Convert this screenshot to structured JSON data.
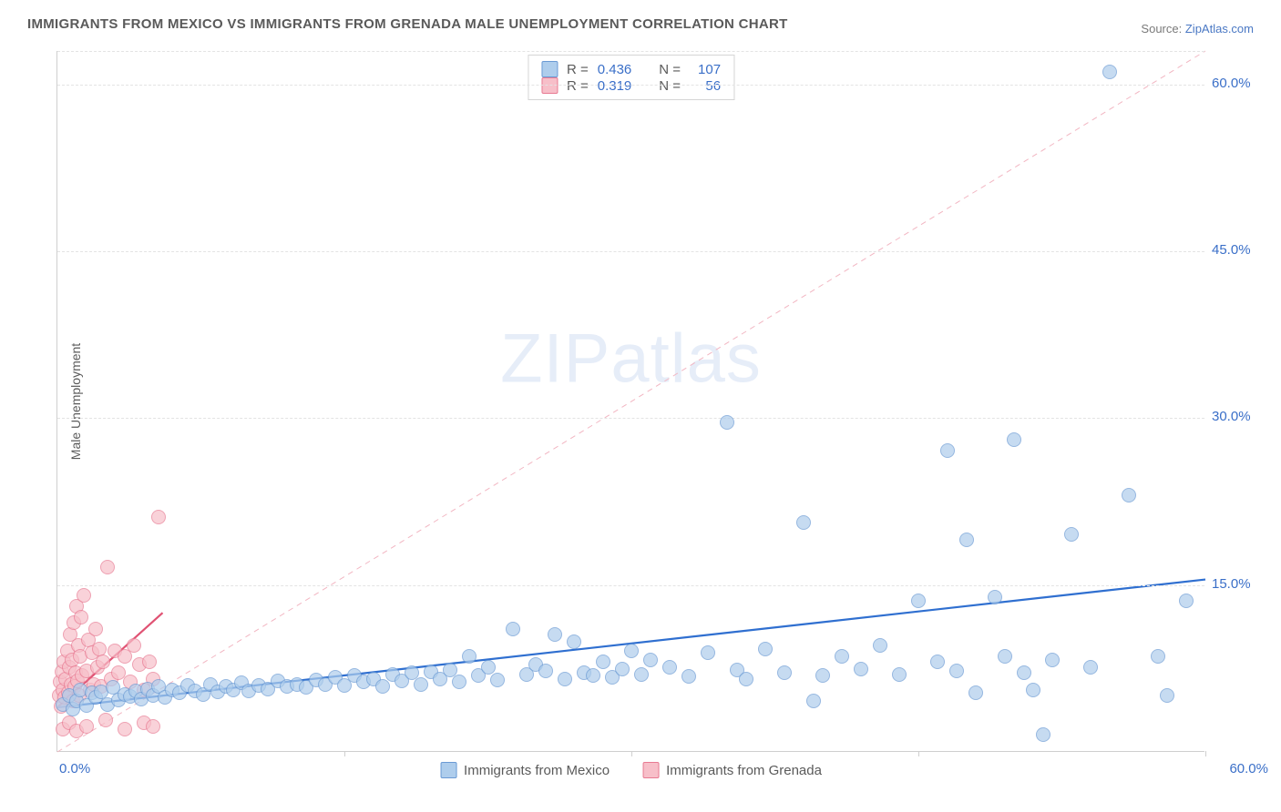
{
  "title": "IMMIGRANTS FROM MEXICO VS IMMIGRANTS FROM GRENADA MALE UNEMPLOYMENT CORRELATION CHART",
  "source_label": "Source:",
  "source_name": "ZipAtlas.com",
  "ylabel": "Male Unemployment",
  "watermark": "ZIPatlas",
  "chart": {
    "type": "scatter",
    "xlim": [
      0,
      60
    ],
    "ylim": [
      0,
      63
    ],
    "yticks": [
      15.0,
      30.0,
      45.0,
      60.0
    ],
    "xtick_left": "0.0%",
    "xtick_right": "60.0%",
    "vticks_at": [
      15,
      30,
      45,
      60
    ],
    "background_color": "#ffffff",
    "grid_color": "#e3e3e3",
    "border_color": "#cfcfcf",
    "marker_radius": 8,
    "series": {
      "mexico": {
        "label": "Immigrants from Mexico",
        "fill": "#aecdec",
        "stroke": "#6a9ad4",
        "opacity": 0.7,
        "R": "0.436",
        "N": "107",
        "trend": {
          "x1": 0,
          "y1": 4.0,
          "x2": 60,
          "y2": 15.5,
          "color": "#2f6fd0",
          "width": 2.2,
          "dash": "none"
        },
        "ref_line": {
          "x1": 0,
          "y1": 0,
          "x2": 60,
          "y2": 63,
          "color": "#f2b6c2",
          "width": 1,
          "dash": "6,5"
        },
        "points": [
          [
            0.3,
            4.2
          ],
          [
            0.6,
            5.0
          ],
          [
            0.8,
            3.8
          ],
          [
            1.0,
            4.5
          ],
          [
            1.2,
            5.5
          ],
          [
            1.5,
            4.1
          ],
          [
            1.8,
            5.2
          ],
          [
            2.0,
            4.8
          ],
          [
            2.3,
            5.3
          ],
          [
            2.6,
            4.2
          ],
          [
            2.9,
            5.7
          ],
          [
            3.2,
            4.6
          ],
          [
            3.5,
            5.1
          ],
          [
            3.8,
            4.9
          ],
          [
            4.1,
            5.4
          ],
          [
            4.4,
            4.7
          ],
          [
            4.7,
            5.6
          ],
          [
            5.0,
            5.0
          ],
          [
            5.3,
            5.8
          ],
          [
            5.6,
            4.8
          ],
          [
            6.0,
            5.5
          ],
          [
            6.4,
            5.2
          ],
          [
            6.8,
            5.9
          ],
          [
            7.2,
            5.4
          ],
          [
            7.6,
            5.1
          ],
          [
            8.0,
            6.0
          ],
          [
            8.4,
            5.3
          ],
          [
            8.8,
            5.8
          ],
          [
            9.2,
            5.5
          ],
          [
            9.6,
            6.1
          ],
          [
            10.0,
            5.4
          ],
          [
            10.5,
            5.9
          ],
          [
            11.0,
            5.6
          ],
          [
            11.5,
            6.3
          ],
          [
            12.0,
            5.8
          ],
          [
            12.5,
            6.0
          ],
          [
            13.0,
            5.7
          ],
          [
            13.5,
            6.4
          ],
          [
            14.0,
            6.0
          ],
          [
            14.5,
            6.6
          ],
          [
            15.0,
            5.9
          ],
          [
            15.5,
            6.8
          ],
          [
            16.0,
            6.2
          ],
          [
            16.5,
            6.5
          ],
          [
            17.0,
            5.8
          ],
          [
            17.5,
            6.9
          ],
          [
            18.0,
            6.3
          ],
          [
            18.5,
            7.0
          ],
          [
            19.0,
            6.0
          ],
          [
            19.5,
            7.1
          ],
          [
            20.0,
            6.5
          ],
          [
            20.5,
            7.3
          ],
          [
            21.0,
            6.2
          ],
          [
            21.5,
            8.5
          ],
          [
            22.0,
            6.8
          ],
          [
            22.5,
            7.5
          ],
          [
            23.0,
            6.4
          ],
          [
            23.8,
            11.0
          ],
          [
            24.5,
            6.9
          ],
          [
            25.0,
            7.8
          ],
          [
            25.5,
            7.2
          ],
          [
            26.0,
            10.5
          ],
          [
            26.5,
            6.5
          ],
          [
            27.0,
            9.8
          ],
          [
            27.5,
            7.0
          ],
          [
            28.0,
            6.8
          ],
          [
            28.5,
            8.0
          ],
          [
            29.0,
            6.6
          ],
          [
            29.5,
            7.4
          ],
          [
            30.0,
            9.0
          ],
          [
            30.5,
            6.9
          ],
          [
            31.0,
            8.2
          ],
          [
            32.0,
            7.5
          ],
          [
            33.0,
            6.7
          ],
          [
            34.0,
            8.8
          ],
          [
            35.0,
            29.5
          ],
          [
            35.5,
            7.3
          ],
          [
            36.0,
            6.5
          ],
          [
            37.0,
            9.2
          ],
          [
            38.0,
            7.0
          ],
          [
            39.0,
            20.5
          ],
          [
            39.5,
            4.5
          ],
          [
            40.0,
            6.8
          ],
          [
            41.0,
            8.5
          ],
          [
            42.0,
            7.4
          ],
          [
            43.0,
            9.5
          ],
          [
            44.0,
            6.9
          ],
          [
            45.0,
            13.5
          ],
          [
            46.0,
            8.0
          ],
          [
            46.5,
            27.0
          ],
          [
            47.0,
            7.2
          ],
          [
            47.5,
            19.0
          ],
          [
            48.0,
            5.2
          ],
          [
            49.0,
            13.8
          ],
          [
            49.5,
            8.5
          ],
          [
            50.0,
            28.0
          ],
          [
            50.5,
            7.0
          ],
          [
            51.0,
            5.5
          ],
          [
            51.5,
            1.5
          ],
          [
            52.0,
            8.2
          ],
          [
            53.0,
            19.5
          ],
          [
            54.0,
            7.5
          ],
          [
            55.0,
            61.0
          ],
          [
            56.0,
            23.0
          ],
          [
            57.5,
            8.5
          ],
          [
            58.0,
            5.0
          ],
          [
            59.0,
            13.5
          ]
        ]
      },
      "grenada": {
        "label": "Immigrants from Grenada",
        "fill": "#f7bfc9",
        "stroke": "#e87a92",
        "opacity": 0.7,
        "R": "0.319",
        "N": "56",
        "trend": {
          "x1": 0,
          "y1": 4.0,
          "x2": 5.5,
          "y2": 12.5,
          "color": "#e05273",
          "width": 2.2,
          "dash": "none"
        },
        "points": [
          [
            0.1,
            5.0
          ],
          [
            0.15,
            6.2
          ],
          [
            0.2,
            4.0
          ],
          [
            0.25,
            7.1
          ],
          [
            0.3,
            5.5
          ],
          [
            0.35,
            8.0
          ],
          [
            0.4,
            4.8
          ],
          [
            0.45,
            6.5
          ],
          [
            0.5,
            9.0
          ],
          [
            0.55,
            5.2
          ],
          [
            0.6,
            7.5
          ],
          [
            0.65,
            10.5
          ],
          [
            0.7,
            6.0
          ],
          [
            0.75,
            8.2
          ],
          [
            0.8,
            4.5
          ],
          [
            0.85,
            11.5
          ],
          [
            0.9,
            5.8
          ],
          [
            0.95,
            7.0
          ],
          [
            1.0,
            13.0
          ],
          [
            1.05,
            6.3
          ],
          [
            1.1,
            9.5
          ],
          [
            1.15,
            5.0
          ],
          [
            1.2,
            8.5
          ],
          [
            1.25,
            12.0
          ],
          [
            1.3,
            6.8
          ],
          [
            1.4,
            14.0
          ],
          [
            1.5,
            7.2
          ],
          [
            1.6,
            10.0
          ],
          [
            1.7,
            5.5
          ],
          [
            1.8,
            8.8
          ],
          [
            1.9,
            6.0
          ],
          [
            2.0,
            11.0
          ],
          [
            2.1,
            7.5
          ],
          [
            2.2,
            9.2
          ],
          [
            2.3,
            5.8
          ],
          [
            2.4,
            8.0
          ],
          [
            2.6,
            16.5
          ],
          [
            2.8,
            6.5
          ],
          [
            3.0,
            9.0
          ],
          [
            3.2,
            7.0
          ],
          [
            3.5,
            8.5
          ],
          [
            3.8,
            6.2
          ],
          [
            4.0,
            9.5
          ],
          [
            4.3,
            7.8
          ],
          [
            4.5,
            5.5
          ],
          [
            4.8,
            8.0
          ],
          [
            5.0,
            6.5
          ],
          [
            5.3,
            21.0
          ],
          [
            0.3,
            2.0
          ],
          [
            0.6,
            2.5
          ],
          [
            1.0,
            1.8
          ],
          [
            1.5,
            2.2
          ],
          [
            2.5,
            2.8
          ],
          [
            3.5,
            2.0
          ],
          [
            4.5,
            2.5
          ],
          [
            5.0,
            2.2
          ]
        ]
      }
    }
  },
  "legend_labels": {
    "r_prefix": "R =",
    "n_prefix": "N ="
  }
}
